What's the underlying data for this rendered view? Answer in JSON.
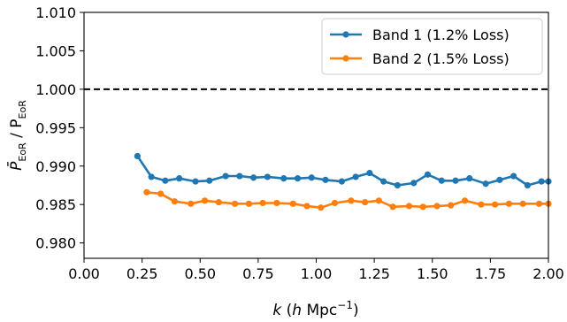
{
  "chart_data": {
    "type": "line",
    "xlabel_html": "k (h Mpc⁻¹)",
    "xlabel": {
      "k": "k",
      "open": " (",
      "h": "h",
      "unit": " Mpc",
      "sup": "−1",
      "close": ")"
    },
    "ylabel": {
      "main": "P̄",
      "sub1": "EoR",
      "sep": " / P",
      "sub2": "EoR"
    },
    "xlim": [
      0.0,
      2.0
    ],
    "ylim": [
      0.978,
      1.01
    ],
    "x_ticks": [
      "0.00",
      "0.25",
      "0.50",
      "0.75",
      "1.00",
      "1.25",
      "1.50",
      "1.75",
      "2.00"
    ],
    "y_ticks": [
      "0.980",
      "0.985",
      "0.990",
      "0.995",
      "1.000",
      "1.005",
      "1.010"
    ],
    "reference_line": {
      "y": 1.0,
      "style": "dashed",
      "color": "#000000"
    },
    "legend": {
      "placement": "top-right"
    },
    "series": [
      {
        "name": "Band 1 (1.2% Loss)",
        "color": "#1f77b4",
        "x": [
          0.23,
          0.29,
          0.35,
          0.41,
          0.48,
          0.54,
          0.61,
          0.67,
          0.73,
          0.79,
          0.86,
          0.92,
          0.98,
          1.04,
          1.11,
          1.17,
          1.23,
          1.29,
          1.35,
          1.42,
          1.48,
          1.54,
          1.6,
          1.66,
          1.73,
          1.79,
          1.85,
          1.91,
          1.97,
          2.0
        ],
        "values": [
          0.9913,
          0.9886,
          0.9881,
          0.9884,
          0.988,
          0.9881,
          0.9887,
          0.9887,
          0.9885,
          0.9886,
          0.9884,
          0.9884,
          0.9885,
          0.9882,
          0.988,
          0.9886,
          0.9891,
          0.988,
          0.9875,
          0.9878,
          0.9889,
          0.9881,
          0.9881,
          0.9884,
          0.9877,
          0.9882,
          0.9887,
          0.9875,
          0.988,
          0.988
        ]
      },
      {
        "name": "Band 2 (1.5% Loss)",
        "color": "#ff7f0e",
        "x": [
          0.27,
          0.33,
          0.39,
          0.46,
          0.52,
          0.58,
          0.65,
          0.71,
          0.77,
          0.83,
          0.9,
          0.96,
          1.02,
          1.08,
          1.15,
          1.21,
          1.27,
          1.33,
          1.4,
          1.46,
          1.52,
          1.58,
          1.64,
          1.71,
          1.77,
          1.83,
          1.89,
          1.96,
          2.0
        ],
        "values": [
          0.9866,
          0.9864,
          0.9854,
          0.9851,
          0.9855,
          0.9853,
          0.9851,
          0.9851,
          0.9852,
          0.9852,
          0.9851,
          0.9848,
          0.9846,
          0.9852,
          0.9855,
          0.9853,
          0.9855,
          0.9847,
          0.9848,
          0.9847,
          0.9848,
          0.9849,
          0.9855,
          0.985,
          0.985,
          0.9851,
          0.9851,
          0.9851,
          0.9851
        ]
      }
    ]
  }
}
